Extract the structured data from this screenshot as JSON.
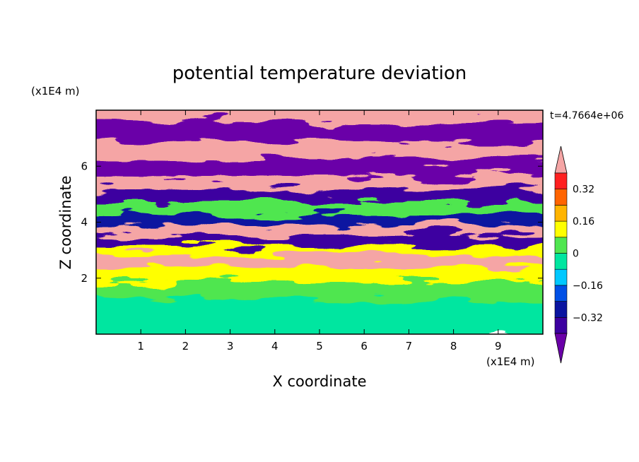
{
  "chart_data": {
    "type": "heatmap",
    "title": "potential temperature deviation",
    "xlabel": "X coordinate",
    "ylabel": "Z coordinate",
    "x_units": "(x1E4 m)",
    "y_units": "(x1E4 m)",
    "time_label": "t=4.7664e+06",
    "xlim": [
      0,
      10
    ],
    "ylim": [
      0,
      8
    ],
    "x_ticks": [
      1,
      2,
      3,
      4,
      5,
      6,
      7,
      8,
      9
    ],
    "y_ticks": [
      2,
      4,
      6
    ],
    "colorbar": {
      "levels": [
        -0.4,
        -0.32,
        -0.24,
        -0.16,
        -0.08,
        0,
        0.08,
        0.16,
        0.24,
        0.32,
        0.4
      ],
      "tick_labels": [
        "0.32",
        "0.16",
        "0",
        "−0.16",
        "−0.32"
      ],
      "tick_values": [
        0.32,
        0.16,
        0,
        -0.16,
        -0.32
      ],
      "colors": [
        "#6a00a8",
        "#3c00a0",
        "#0a14a0",
        "#0050e6",
        "#00c8ff",
        "#00e6a0",
        "#50e650",
        "#ffff00",
        "#ffb400",
        "#ff6400",
        "#ff2020",
        "#f5a5a5"
      ]
    },
    "layers": [
      {
        "z": 7.3,
        "value": 0.42
      },
      {
        "z": 6.55,
        "value": -0.42
      },
      {
        "z": 5.95,
        "value": 0.42
      },
      {
        "z": 5.3,
        "value": -0.42
      },
      {
        "z": 4.75,
        "value": 0.42
      },
      {
        "z": 4.3,
        "value": -0.36
      },
      {
        "z": 3.85,
        "value": 0.05
      },
      {
        "z": 3.45,
        "value": -0.3
      },
      {
        "z": 3.1,
        "value": 0.42
      },
      {
        "z": 2.7,
        "value": -0.36
      },
      {
        "z": 2.35,
        "value": 0.1
      },
      {
        "z": 2.0,
        "value": 0.42
      },
      {
        "z": 1.55,
        "value": 0.12
      },
      {
        "z": 0.9,
        "value": 0.0
      },
      {
        "z": 0.3,
        "value": -0.05
      }
    ]
  }
}
